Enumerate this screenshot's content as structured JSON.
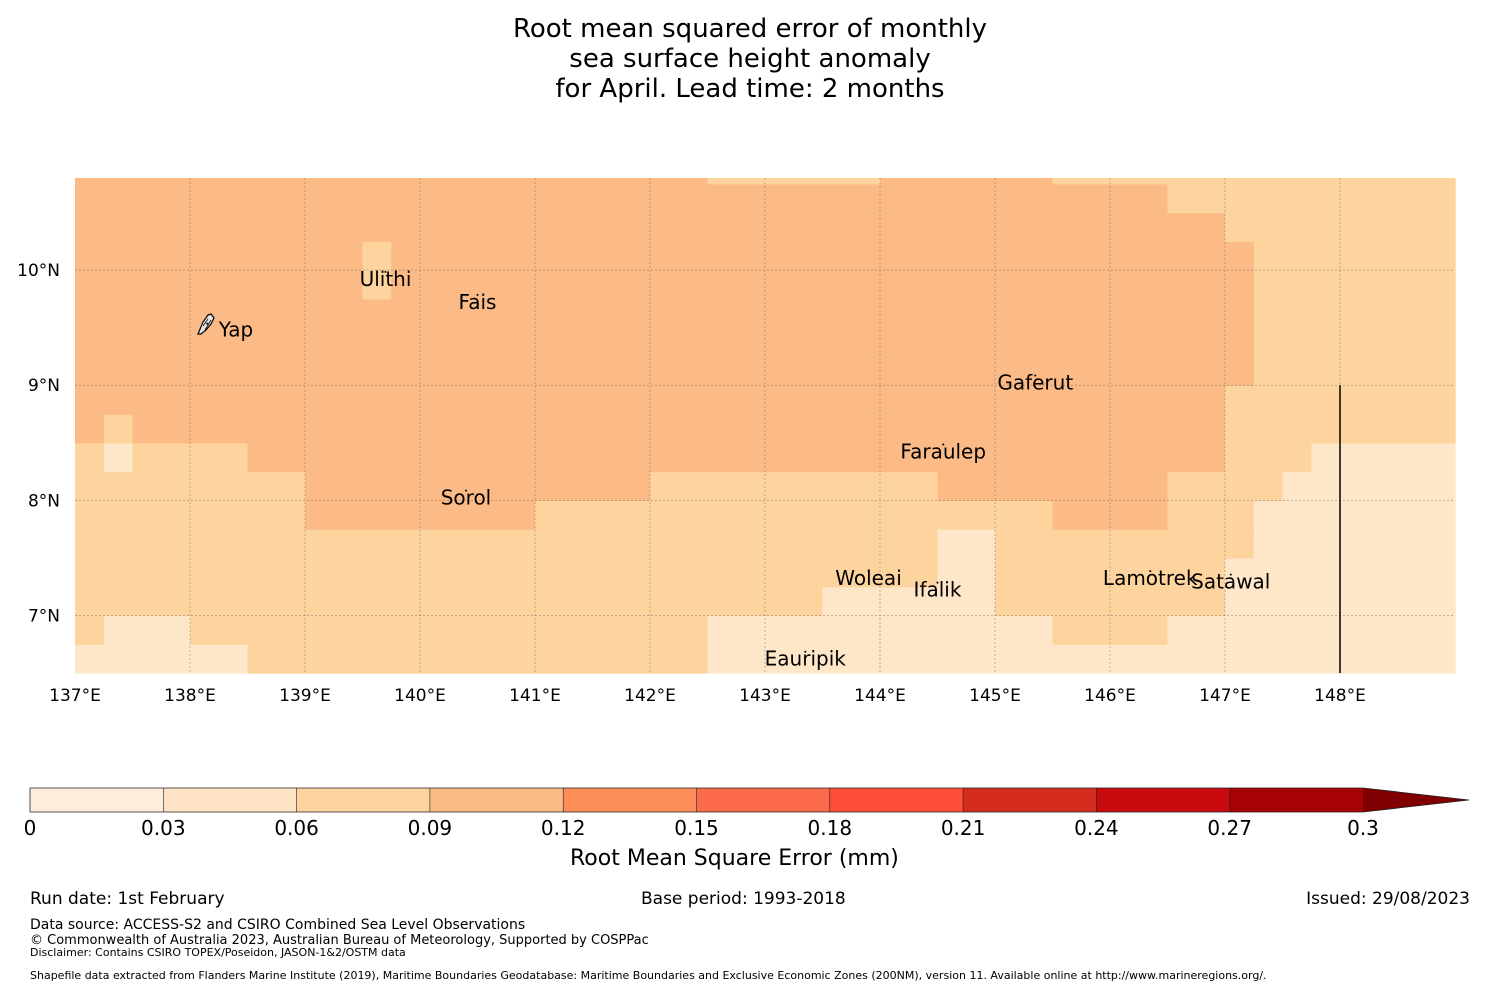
{
  "title": {
    "line1": "Root mean squared error of monthly",
    "line2": "sea surface height anomaly",
    "line3": "for April. Lead time: 2 months"
  },
  "map": {
    "lon_range": [
      137.0,
      149.0
    ],
    "lat_range": [
      6.5,
      10.8
    ],
    "lon_ticks": [
      "137°E",
      "138°E",
      "139°E",
      "140°E",
      "141°E",
      "142°E",
      "143°E",
      "144°E",
      "145°E",
      "146°E",
      "147°E",
      "148°E"
    ],
    "lat_ticks": [
      "10°N",
      "9°N",
      "8°N",
      "7°N"
    ],
    "places": [
      {
        "name": "Yap",
        "lon": 138.15,
        "lat": 9.5
      },
      {
        "name": "Ulithi",
        "lon": 139.7,
        "lat": 9.95
      },
      {
        "name": "Fais",
        "lon": 140.5,
        "lat": 9.75
      },
      {
        "name": "Gaferut",
        "lon": 145.35,
        "lat": 9.05
      },
      {
        "name": "Faraulep",
        "lon": 144.55,
        "lat": 8.45
      },
      {
        "name": "Sorol",
        "lon": 140.4,
        "lat": 8.05
      },
      {
        "name": "Woleai",
        "lon": 143.9,
        "lat": 7.35
      },
      {
        "name": "Ifalik",
        "lon": 144.5,
        "lat": 7.25
      },
      {
        "name": "Lamotrek",
        "lon": 146.35,
        "lat": 7.35
      },
      {
        "name": "Satawal",
        "lon": 147.05,
        "lat": 7.32
      },
      {
        "name": "Eauripik",
        "lon": 143.35,
        "lat": 6.65
      }
    ],
    "boundary_line": {
      "lon": 148.0,
      "lat_from": 9.0,
      "lat_to": 6.5
    }
  },
  "colorbar": {
    "ticks": [
      "0",
      "0.03",
      "0.06",
      "0.09",
      "0.12",
      "0.15",
      "0.18",
      "0.21",
      "0.24",
      "0.27",
      "0.3"
    ],
    "colors": [
      "#fff5eb",
      "#fee6ce",
      "#fdd49e",
      "#fdbb84",
      "#fc8d59",
      "#fb6a4a",
      "#ef3b2c",
      "#cb181d",
      "#a50f15",
      "#67000d"
    ],
    "colors_hex": [
      "#feeedc",
      "#fee4c4",
      "#fdd49e",
      "#fbbb86",
      "#fc8d59",
      "#fb6a4a",
      "#fd4e3a",
      "#d42c1e",
      "#c90a0f",
      "#a80304"
    ],
    "extend_color": "#7f0000",
    "label": "Root Mean Square Error (mm)"
  },
  "field": {
    "cell_deg": 0.25,
    "palette": [
      "#feefdf",
      "#fee6c9",
      "#fdd49e",
      "#fbba86"
    ]
  },
  "footer": {
    "run_date": "Run date: 1st February",
    "base_period": "Base period: 1993-2018",
    "issued": "Issued: 29/08/2023",
    "data_source": "Data source: ACCESS-S2 and CSIRO Combined Sea Level Observations",
    "copyright": "© Commonwealth of Australia 2023, Australian Bureau of Meteorology, Supported by COSPPac",
    "disclaimer": "Disclaimer: Contains CSIRO TOPEX/Poseidon, JASON-1&2/OSTM data",
    "shapefile": "Shapefile data extracted from Flanders Marine Institute (2019), Maritime Boundaries Geodatabase: Maritime Boundaries and Exclusive Economic Zones (200NM), version 11. Available online at http://www.marineregions.org/."
  }
}
